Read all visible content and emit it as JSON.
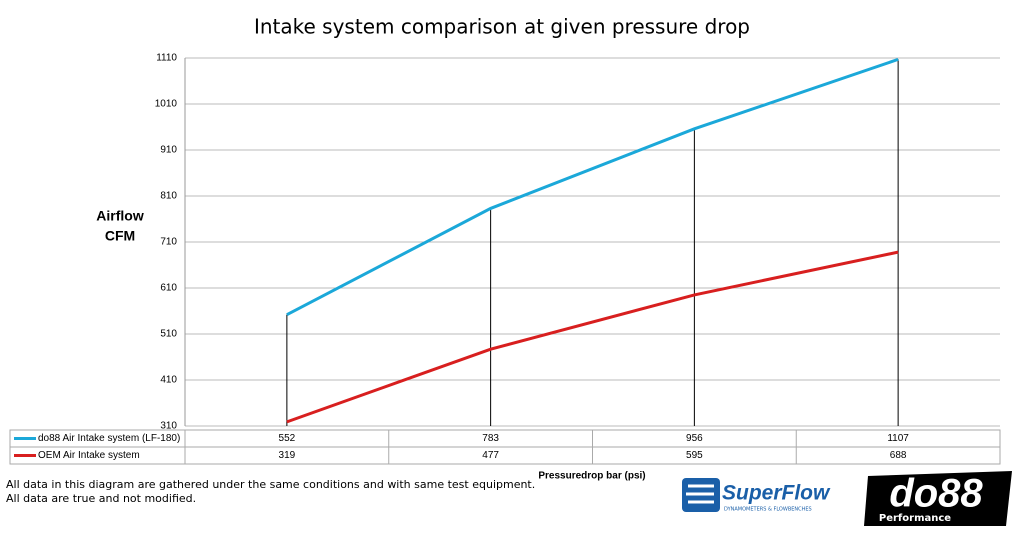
{
  "chart_data": {
    "type": "line",
    "title": "Intake system comparison at given pressure drop",
    "ylabel": [
      "Airflow",
      "CFM"
    ],
    "xlabel": "Pressuredrop bar (psi)",
    "categories": [
      null,
      null,
      null,
      null
    ],
    "series": [
      {
        "name": "do88 Air Intake system (LF-180)",
        "color": "#1ba8d9",
        "values": [
          552,
          783,
          956,
          1107
        ]
      },
      {
        "name": "OEM Air Intake system",
        "color": "#d81f1f",
        "values": [
          319,
          477,
          595,
          688
        ]
      }
    ],
    "ylim": [
      310,
      1110
    ],
    "yticks": [
      310,
      410,
      510,
      610,
      710,
      810,
      910,
      1010,
      1110
    ],
    "grid": true,
    "data_table": true
  },
  "notes": [
    "All data in this diagram are gathered under the same conditions and with same test equipment.",
    "All data are true and not modified."
  ],
  "logos": {
    "superflow": "SuperFlow",
    "superflow_tagline": "DYNAMOMETERS & FLOWBENCHES",
    "do88": "do88",
    "do88_tagline": "Performance"
  }
}
